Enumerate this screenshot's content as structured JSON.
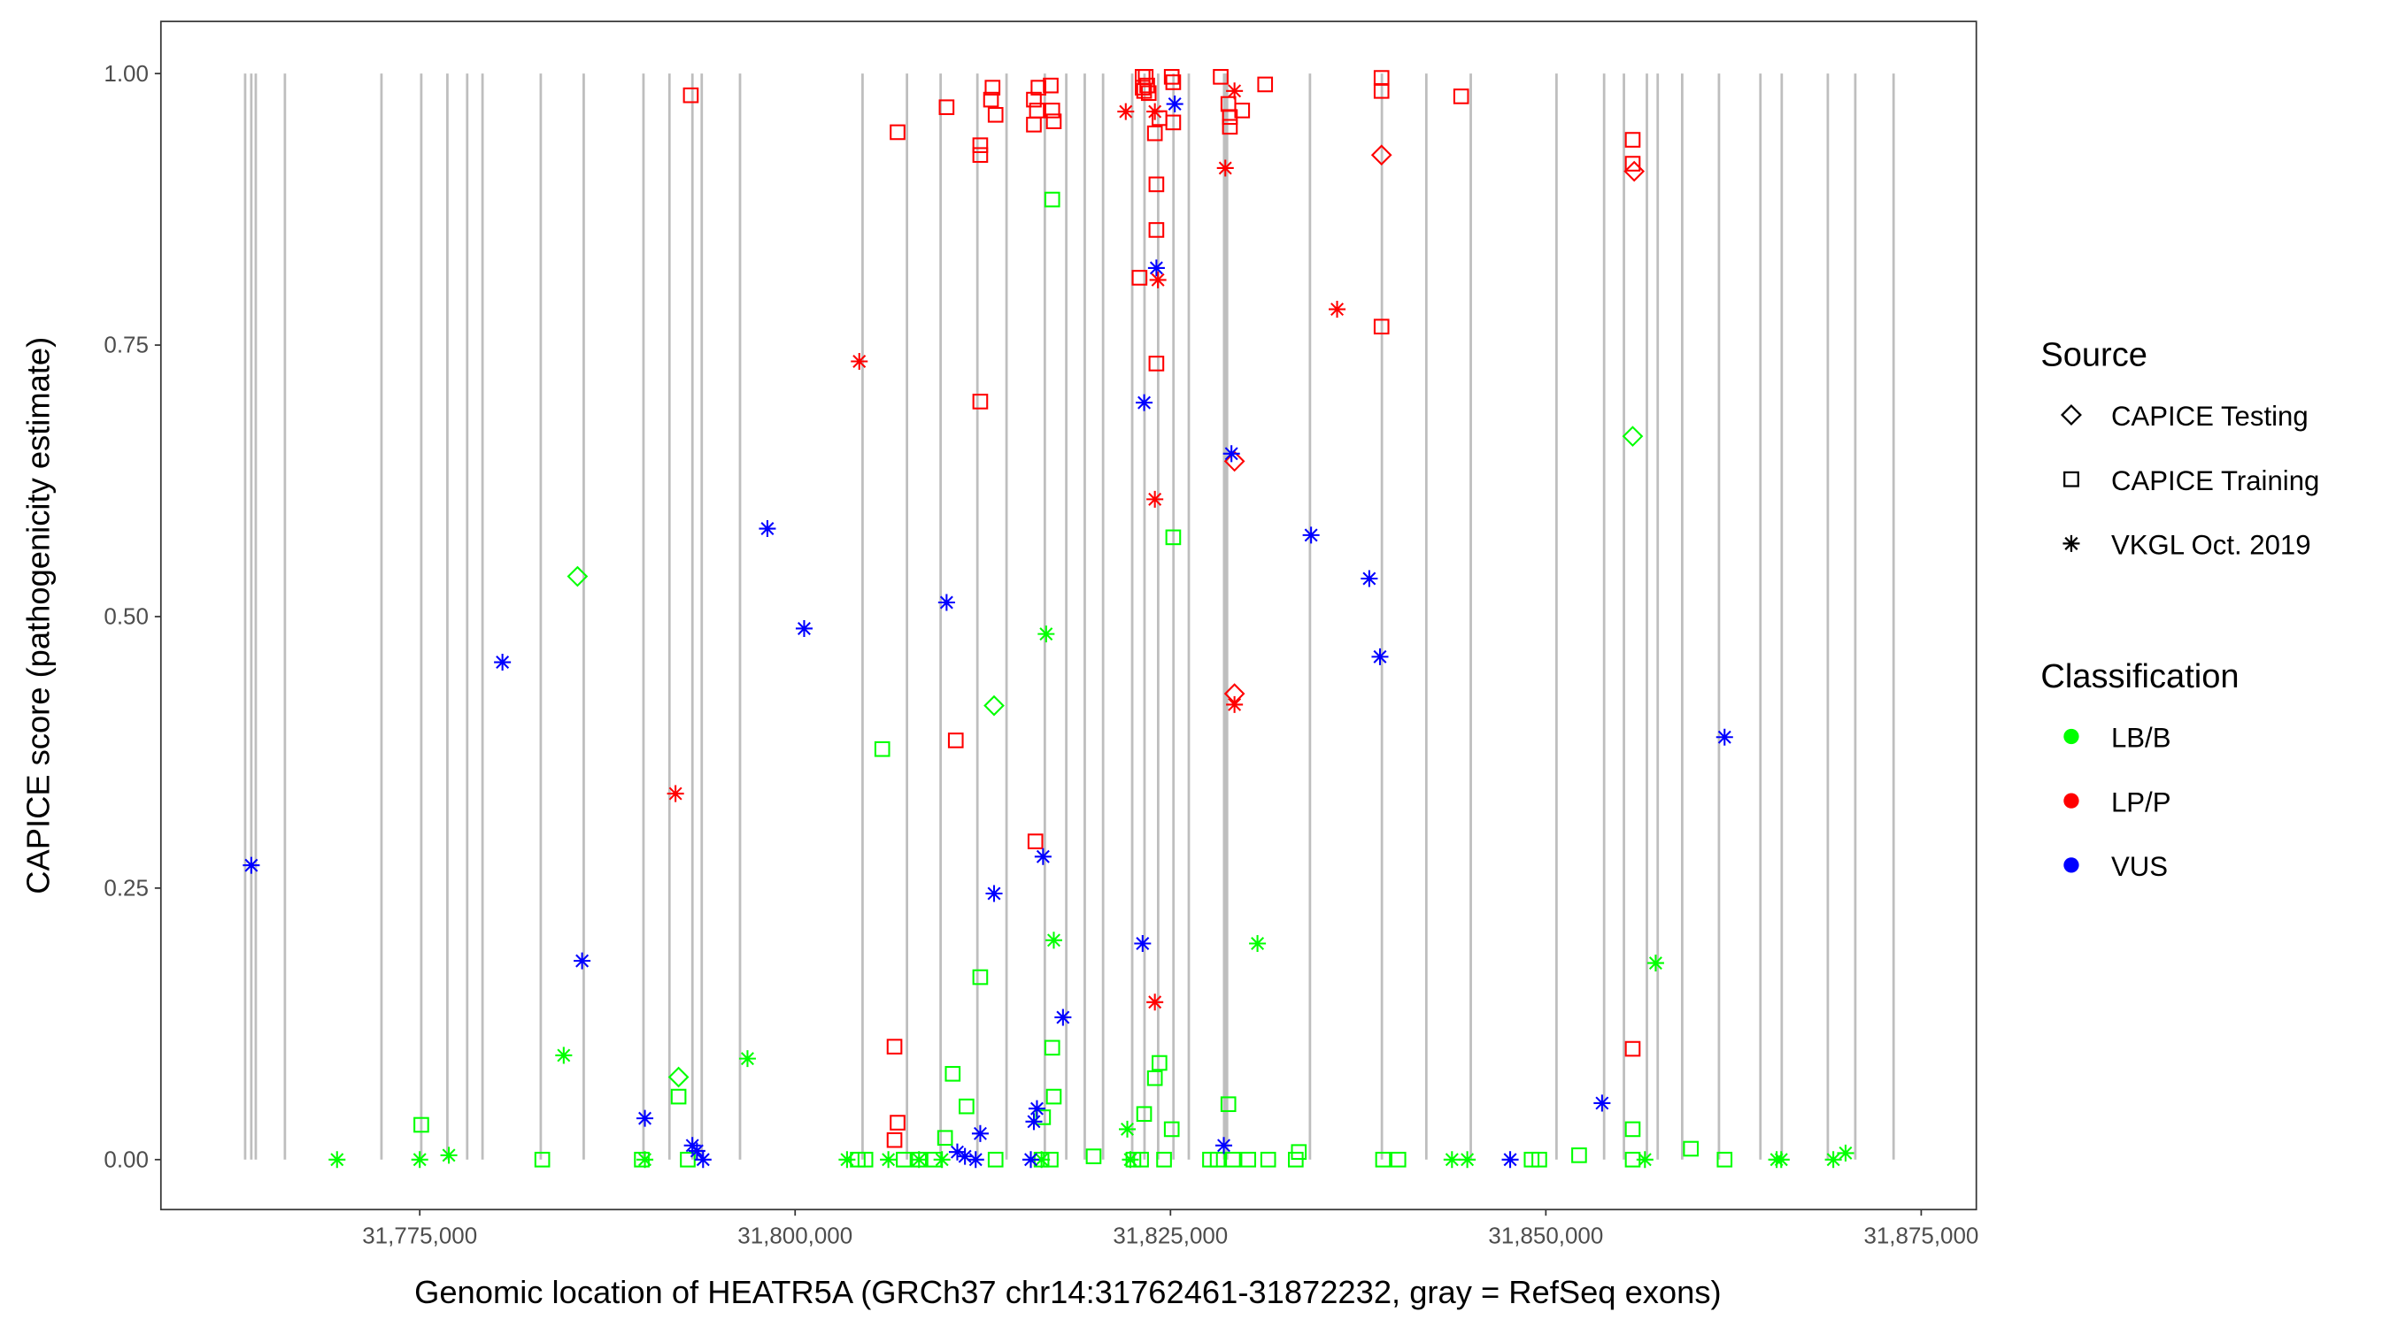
{
  "chart_data": {
    "type": "scatter",
    "xlabel": "Genomic location of HEATR5A (GRCh37 chr14:31762461-31872232, gray = RefSeq exons)",
    "ylabel": "CAPICE score (pathogenicity estimate)",
    "xlim": [
      31757760,
      31878670
    ],
    "ylim": [
      -0.046,
      1.048
    ],
    "x_ticks": [
      31775000,
      31800000,
      31825000,
      31850000,
      31875000
    ],
    "x_tick_labels": [
      "31,775,000",
      "31,800,000",
      "31,825,000",
      "31,850,000",
      "31,875,000"
    ],
    "y_ticks": [
      0,
      0.25,
      0.5,
      0.75,
      1.0
    ],
    "y_tick_labels": [
      "0.00",
      "0.25",
      "0.50",
      "0.75",
      "1.00"
    ],
    "grid": false,
    "exon_lines_color": "#bebebe",
    "exon_positions": [
      31763370,
      31763780,
      31764080,
      31766020,
      31772450,
      31775100,
      31776840,
      31778160,
      31779180,
      31783060,
      31785920,
      31789900,
      31791630,
      31793160,
      31793780,
      31796330,
      31804490,
      31807450,
      31809690,
      31812140,
      31814080,
      31816630,
      31818060,
      31819290,
      31820510,
      31822450,
      31823270,
      31824180,
      31825200,
      31826220,
      31828570,
      31828670,
      31828770,
      31834290,
      31839080,
      31842040,
      31845000,
      31850710,
      31853880,
      31855200,
      31856730,
      31857450,
      31859080,
      31861530,
      31864290,
      31865710,
      31868780,
      31870610,
      31873160
    ],
    "legend_placement": "right",
    "legend": {
      "source_title": "Source",
      "source_items": [
        {
          "key": "testing",
          "label": "CAPICE Testing",
          "shape": "diamond-open"
        },
        {
          "key": "training",
          "label": "CAPICE Training",
          "shape": "square-open"
        },
        {
          "key": "vkgl",
          "label": "VKGL Oct. 2019",
          "shape": "asterisk"
        }
      ],
      "class_title": "Classification",
      "class_items": [
        {
          "key": "LB/B",
          "label": "LB/B",
          "color": "#00ff00"
        },
        {
          "key": "LP/P",
          "label": "LP/P",
          "color": "#ff0000"
        },
        {
          "key": "VUS",
          "label": "VUS",
          "color": "#0000ff"
        }
      ]
    },
    "point_fields": [
      "position",
      "score",
      "source",
      "classification"
    ],
    "points": [
      [
        31775102,
        0.032,
        "training",
        "LB/B"
      ],
      [
        31783160,
        0,
        "training",
        "LB/B"
      ],
      [
        31789790,
        0,
        "training",
        "LB/B"
      ],
      [
        31792238,
        0.058,
        "training",
        "LB/B"
      ],
      [
        31792850,
        0,
        "training",
        "LB/B"
      ],
      [
        31805804,
        0.378,
        "training",
        "LB/B"
      ],
      [
        31809986,
        0.02,
        "training",
        "LB/B"
      ],
      [
        31810496,
        0.079,
        "training",
        "LB/B"
      ],
      [
        31811414,
        0.049,
        "training",
        "LB/B"
      ],
      [
        31812332,
        0.168,
        "training",
        "LB/B"
      ],
      [
        31817126,
        0.884,
        "training",
        "LB/B"
      ],
      [
        31817126,
        0.103,
        "training",
        "LB/B"
      ],
      [
        31817228,
        0.058,
        "training",
        "LB/B"
      ],
      [
        31816514,
        0.039,
        "training",
        "LB/B"
      ],
      [
        31819880,
        0.003,
        "training",
        "LB/B"
      ],
      [
        31823246,
        0.042,
        "training",
        "LB/B"
      ],
      [
        31823960,
        0.075,
        "training",
        "LB/B"
      ],
      [
        31824266,
        0.089,
        "training",
        "LB/B"
      ],
      [
        31825184,
        0.573,
        "training",
        "LB/B"
      ],
      [
        31825082,
        0.028,
        "training",
        "LB/B"
      ],
      [
        31828856,
        0.051,
        "training",
        "LB/B"
      ],
      [
        31833344,
        0,
        "training",
        "LB/B"
      ],
      [
        31833548,
        0.007,
        "training",
        "LB/B"
      ],
      [
        31839158,
        0,
        "training",
        "LB/B"
      ],
      [
        31840178,
        0,
        "training",
        "LB/B"
      ],
      [
        31849562,
        0,
        "training",
        "LB/B"
      ],
      [
        31852214,
        0.004,
        "training",
        "LB/B"
      ],
      [
        31855784,
        0.028,
        "training",
        "LB/B"
      ],
      [
        31859660,
        0.01,
        "training",
        "LB/B"
      ],
      [
        31861904,
        0,
        "training",
        "LB/B"
      ],
      [
        31855784,
        0,
        "training",
        "LB/B"
      ],
      [
        31804172,
        0,
        "training",
        "LB/B"
      ],
      [
        31804682,
        0,
        "training",
        "LB/B"
      ],
      [
        31807232,
        0,
        "training",
        "LB/B"
      ],
      [
        31808252,
        0,
        "training",
        "LB/B"
      ],
      [
        31809272,
        0,
        "training",
        "LB/B"
      ],
      [
        31813352,
        0,
        "training",
        "LB/B"
      ],
      [
        31816412,
        0,
        "training",
        "LB/B"
      ],
      [
        31817024,
        0,
        "training",
        "LB/B"
      ],
      [
        31822532,
        0,
        "training",
        "LB/B"
      ],
      [
        31823042,
        0,
        "training",
        "LB/B"
      ],
      [
        31824572,
        0,
        "training",
        "LB/B"
      ],
      [
        31827632,
        0,
        "training",
        "LB/B"
      ],
      [
        31828142,
        0,
        "training",
        "LB/B"
      ],
      [
        31829162,
        0,
        "training",
        "LB/B"
      ],
      [
        31830182,
        0,
        "training",
        "LB/B"
      ],
      [
        31831508,
        0,
        "training",
        "LB/B"
      ],
      [
        31849052,
        0,
        "training",
        "LB/B"
      ],
      [
        31769492,
        0,
        "vkgl",
        "LB/B"
      ],
      [
        31775000,
        0,
        "vkgl",
        "LB/B"
      ],
      [
        31776938,
        0.004,
        "vkgl",
        "LB/B"
      ],
      [
        31784588,
        0.096,
        "vkgl",
        "LB/B"
      ],
      [
        31789994,
        0,
        "vkgl",
        "LB/B"
      ],
      [
        31796828,
        0.093,
        "vkgl",
        "LB/B"
      ],
      [
        31803458,
        0,
        "vkgl",
        "LB/B"
      ],
      [
        31806212,
        0,
        "vkgl",
        "LB/B"
      ],
      [
        31808252,
        0,
        "vkgl",
        "LB/B"
      ],
      [
        31809782,
        0,
        "vkgl",
        "LB/B"
      ],
      [
        31816718,
        0.484,
        "vkgl",
        "LB/B"
      ],
      [
        31817228,
        0.202,
        "vkgl",
        "LB/B"
      ],
      [
        31822124,
        0.028,
        "vkgl",
        "LB/B"
      ],
      [
        31822328,
        0,
        "vkgl",
        "LB/B"
      ],
      [
        31830794,
        0.199,
        "vkgl",
        "LB/B"
      ],
      [
        31843748,
        0,
        "vkgl",
        "LB/B"
      ],
      [
        31844768,
        0,
        "vkgl",
        "LB/B"
      ],
      [
        31856600,
        0,
        "vkgl",
        "LB/B"
      ],
      [
        31857314,
        0.181,
        "vkgl",
        "LB/B"
      ],
      [
        31865372,
        0,
        "vkgl",
        "LB/B"
      ],
      [
        31865678,
        0,
        "vkgl",
        "LB/B"
      ],
      [
        31869146,
        0,
        "vkgl",
        "LB/B"
      ],
      [
        31869962,
        0.006,
        "vkgl",
        "LB/B"
      ],
      [
        31816412,
        0,
        "vkgl",
        "LB/B"
      ],
      [
        31785506,
        0.537,
        "testing",
        "LB/B"
      ],
      [
        31792238,
        0.076,
        "testing",
        "LB/B"
      ],
      [
        31813250,
        0.418,
        "testing",
        "LB/B"
      ],
      [
        31855784,
        0.666,
        "testing",
        "LB/B"
      ],
      [
        31793054,
        0.98,
        "training",
        "LP/P"
      ],
      [
        31806824,
        0.946,
        "training",
        "LP/P"
      ],
      [
        31810088,
        0.969,
        "training",
        "LP/P"
      ],
      [
        31810700,
        0.386,
        "training",
        "LP/P"
      ],
      [
        31812332,
        0.934,
        "training",
        "LP/P"
      ],
      [
        31812332,
        0.925,
        "training",
        "LP/P"
      ],
      [
        31812332,
        0.698,
        "training",
        "LP/P"
      ],
      [
        31813046,
        0.976,
        "training",
        "LP/P"
      ],
      [
        31813148,
        0.987,
        "training",
        "LP/P"
      ],
      [
        31813352,
        0.962,
        "training",
        "LP/P"
      ],
      [
        31815902,
        0.976,
        "training",
        "LP/P"
      ],
      [
        31816208,
        0.987,
        "training",
        "LP/P"
      ],
      [
        31816106,
        0.966,
        "training",
        "LP/P"
      ],
      [
        31815902,
        0.953,
        "training",
        "LP/P"
      ],
      [
        31816004,
        0.293,
        "training",
        "LP/P"
      ],
      [
        31817024,
        0.989,
        "training",
        "LP/P"
      ],
      [
        31817126,
        0.966,
        "training",
        "LP/P"
      ],
      [
        31817228,
        0.956,
        "training",
        "LP/P"
      ],
      [
        31806620,
        0.104,
        "training",
        "LP/P"
      ],
      [
        31806824,
        0.034,
        "training",
        "LP/P"
      ],
      [
        31806620,
        0.018,
        "training",
        "LP/P"
      ],
      [
        31823144,
        0.997,
        "training",
        "LP/P"
      ],
      [
        31823144,
        0.987,
        "training",
        "LP/P"
      ],
      [
        31823246,
        0.984,
        "training",
        "LP/P"
      ],
      [
        31823348,
        0.997,
        "training",
        "LP/P"
      ],
      [
        31823450,
        0.989,
        "training",
        "LP/P"
      ],
      [
        31823552,
        0.982,
        "training",
        "LP/P"
      ],
      [
        31823960,
        0.945,
        "training",
        "LP/P"
      ],
      [
        31824062,
        0.898,
        "training",
        "LP/P"
      ],
      [
        31824062,
        0.856,
        "training",
        "LP/P"
      ],
      [
        31824062,
        0.733,
        "training",
        "LP/P"
      ],
      [
        31822940,
        0.812,
        "training",
        "LP/P"
      ],
      [
        31824266,
        0.959,
        "training",
        "LP/P"
      ],
      [
        31825082,
        0.997,
        "training",
        "LP/P"
      ],
      [
        31825184,
        0.992,
        "training",
        "LP/P"
      ],
      [
        31825184,
        0.955,
        "training",
        "LP/P"
      ],
      [
        31828346,
        0.997,
        "training",
        "LP/P"
      ],
      [
        31828856,
        0.972,
        "training",
        "LP/P"
      ],
      [
        31828958,
        0.96,
        "training",
        "LP/P"
      ],
      [
        31828958,
        0.951,
        "training",
        "LP/P"
      ],
      [
        31829774,
        0.966,
        "training",
        "LP/P"
      ],
      [
        31831304,
        0.99,
        "training",
        "LP/P"
      ],
      [
        31839056,
        0.996,
        "training",
        "LP/P"
      ],
      [
        31839056,
        0.984,
        "training",
        "LP/P"
      ],
      [
        31839056,
        0.767,
        "training",
        "LP/P"
      ],
      [
        31844360,
        0.979,
        "training",
        "LP/P"
      ],
      [
        31855784,
        0.939,
        "training",
        "LP/P"
      ],
      [
        31855784,
        0.917,
        "training",
        "LP/P"
      ],
      [
        31855784,
        0.102,
        "training",
        "LP/P"
      ],
      [
        31792034,
        0.337,
        "vkgl",
        "LP/P"
      ],
      [
        31804274,
        0.735,
        "vkgl",
        "LP/P"
      ],
      [
        31822022,
        0.965,
        "vkgl",
        "LP/P"
      ],
      [
        31823960,
        0.145,
        "vkgl",
        "LP/P"
      ],
      [
        31823960,
        0.608,
        "vkgl",
        "LP/P"
      ],
      [
        31824164,
        0.81,
        "vkgl",
        "LP/P"
      ],
      [
        31823960,
        0.965,
        "vkgl",
        "LP/P"
      ],
      [
        31828652,
        0.913,
        "vkgl",
        "LP/P"
      ],
      [
        31829264,
        0.984,
        "vkgl",
        "LP/P"
      ],
      [
        31829264,
        0.419,
        "vkgl",
        "LP/P"
      ],
      [
        31836098,
        0.783,
        "vkgl",
        "LP/P"
      ],
      [
        31829264,
        0.643,
        "testing",
        "LP/P"
      ],
      [
        31829264,
        0.429,
        "testing",
        "LP/P"
      ],
      [
        31839056,
        0.925,
        "testing",
        "LP/P"
      ],
      [
        31855886,
        0.91,
        "testing",
        "LP/P"
      ],
      [
        31763780,
        0.271,
        "vkgl",
        "VUS"
      ],
      [
        31780508,
        0.458,
        "vkgl",
        "VUS"
      ],
      [
        31785812,
        0.183,
        "vkgl",
        "VUS"
      ],
      [
        31789994,
        0.038,
        "vkgl",
        "VUS"
      ],
      [
        31793156,
        0.013,
        "vkgl",
        "VUS"
      ],
      [
        31793462,
        0.008,
        "vkgl",
        "VUS"
      ],
      [
        31793870,
        0,
        "vkgl",
        "VUS"
      ],
      [
        31798154,
        0.581,
        "vkgl",
        "VUS"
      ],
      [
        31800602,
        0.489,
        "vkgl",
        "VUS"
      ],
      [
        31810088,
        0.513,
        "vkgl",
        "VUS"
      ],
      [
        31810802,
        0.007,
        "vkgl",
        "VUS"
      ],
      [
        31811312,
        0.003,
        "vkgl",
        "VUS"
      ],
      [
        31812026,
        0,
        "vkgl",
        "VUS"
      ],
      [
        31812332,
        0.024,
        "vkgl",
        "VUS"
      ],
      [
        31813250,
        0.245,
        "vkgl",
        "VUS"
      ],
      [
        31815902,
        0.035,
        "vkgl",
        "VUS"
      ],
      [
        31816106,
        0.047,
        "vkgl",
        "VUS"
      ],
      [
        31815698,
        0,
        "vkgl",
        "VUS"
      ],
      [
        31816514,
        0.279,
        "vkgl",
        "VUS"
      ],
      [
        31817840,
        0.131,
        "vkgl",
        "VUS"
      ],
      [
        31823144,
        0.199,
        "vkgl",
        "VUS"
      ],
      [
        31823246,
        0.697,
        "vkgl",
        "VUS"
      ],
      [
        31824062,
        0.821,
        "vkgl",
        "VUS"
      ],
      [
        31825286,
        0.972,
        "vkgl",
        "VUS"
      ],
      [
        31828550,
        0.013,
        "vkgl",
        "VUS"
      ],
      [
        31829060,
        0.65,
        "vkgl",
        "VUS"
      ],
      [
        31834364,
        0.575,
        "vkgl",
        "VUS"
      ],
      [
        31838240,
        0.535,
        "vkgl",
        "VUS"
      ],
      [
        31838954,
        0.463,
        "vkgl",
        "VUS"
      ],
      [
        31847624,
        0,
        "vkgl",
        "VUS"
      ],
      [
        31853744,
        0.052,
        "vkgl",
        "VUS"
      ],
      [
        31861904,
        0.389,
        "vkgl",
        "VUS"
      ]
    ]
  }
}
